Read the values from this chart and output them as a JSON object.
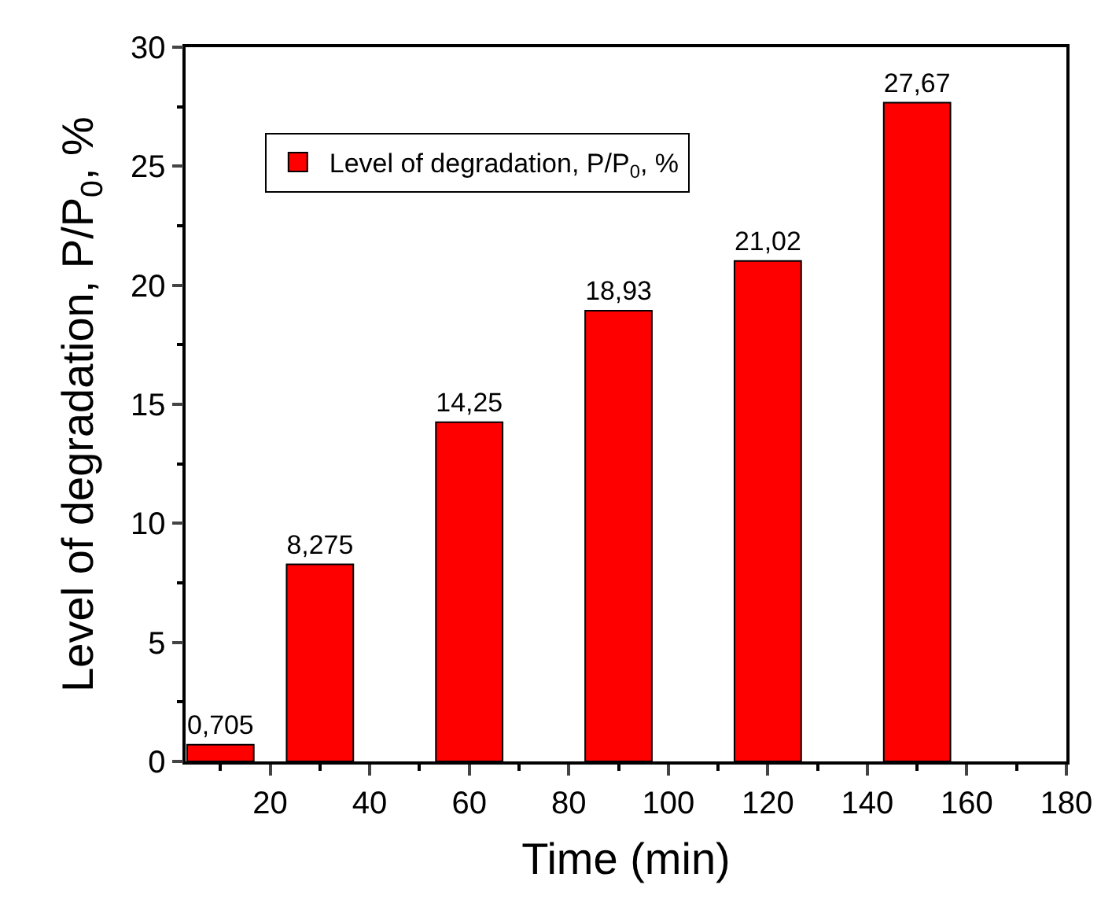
{
  "chart_data": {
    "type": "bar",
    "xlabel": "Time (min)",
    "ylabel": "Level of degradation, P/P$_{0}$, %",
    "x": [
      10,
      30,
      60,
      90,
      120,
      150
    ],
    "series": [
      {
        "name": "Level of degradation, P/P$_{0}$, %",
        "color": "#ff0000",
        "values": [
          0.705,
          8.275,
          14.25,
          18.93,
          21.02,
          27.67
        ],
        "value_labels": [
          "0,705",
          "8,275",
          "14,25",
          "18,93",
          "21,02",
          "27,67"
        ]
      }
    ],
    "xlim": [
      3,
      180
    ],
    "xticks": [
      20,
      40,
      60,
      80,
      100,
      120,
      140,
      160,
      180
    ],
    "ylim": [
      0,
      30
    ],
    "yticks": [
      0,
      5,
      10,
      15,
      20,
      25,
      30
    ],
    "legend": "top left"
  }
}
